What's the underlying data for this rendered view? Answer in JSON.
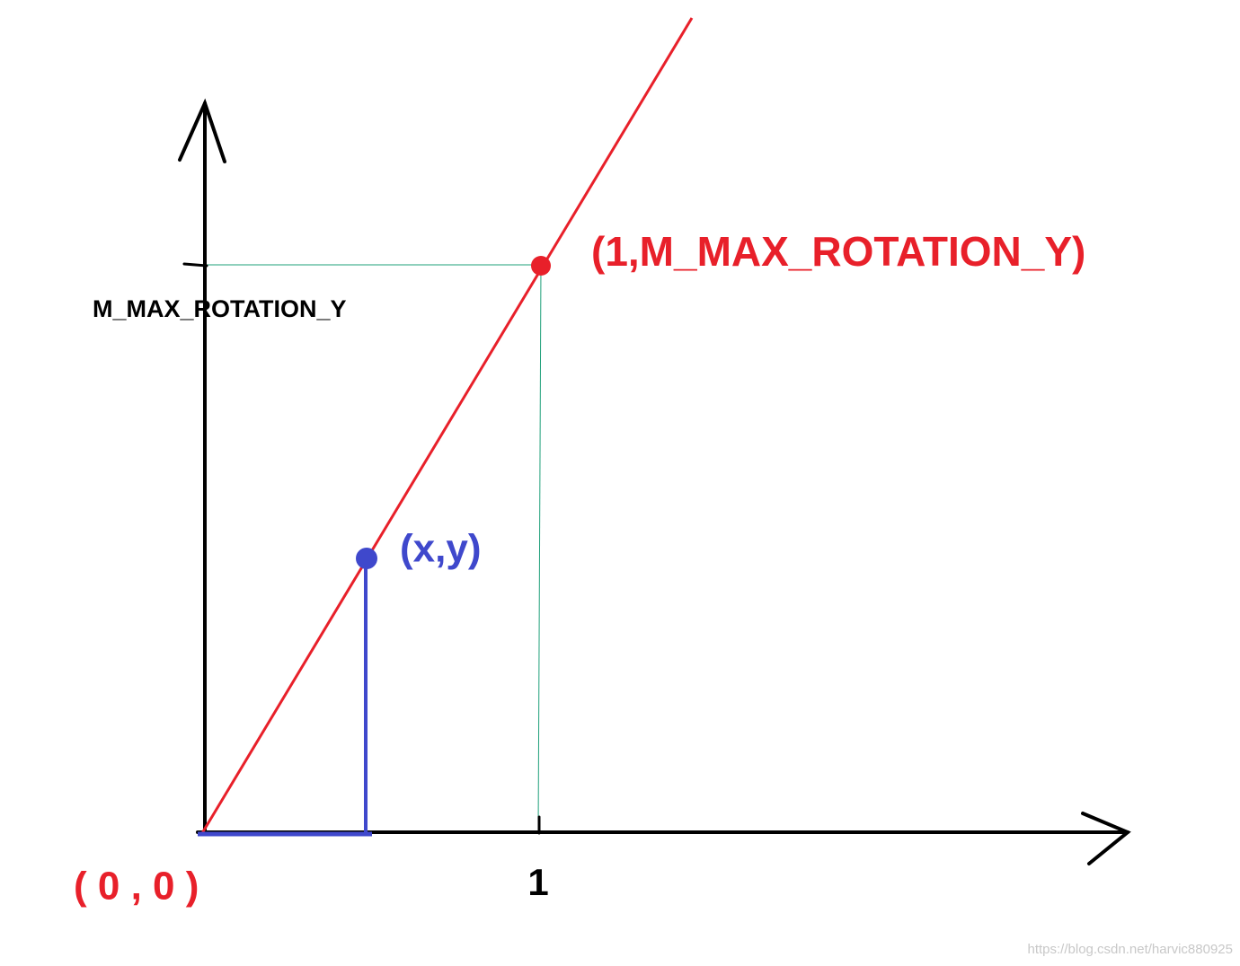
{
  "axis_label_y": "M_MAX_ROTATION_Y",
  "points": [
    {
      "label": "(1,M_MAX_ROTATION_Y)"
    },
    {
      "label": "(x,y)"
    },
    {
      "label": "( 0 , 0 )"
    }
  ],
  "axis_tick_x": "1",
  "watermark": "https://blog.csdn.net/harvic880925"
}
